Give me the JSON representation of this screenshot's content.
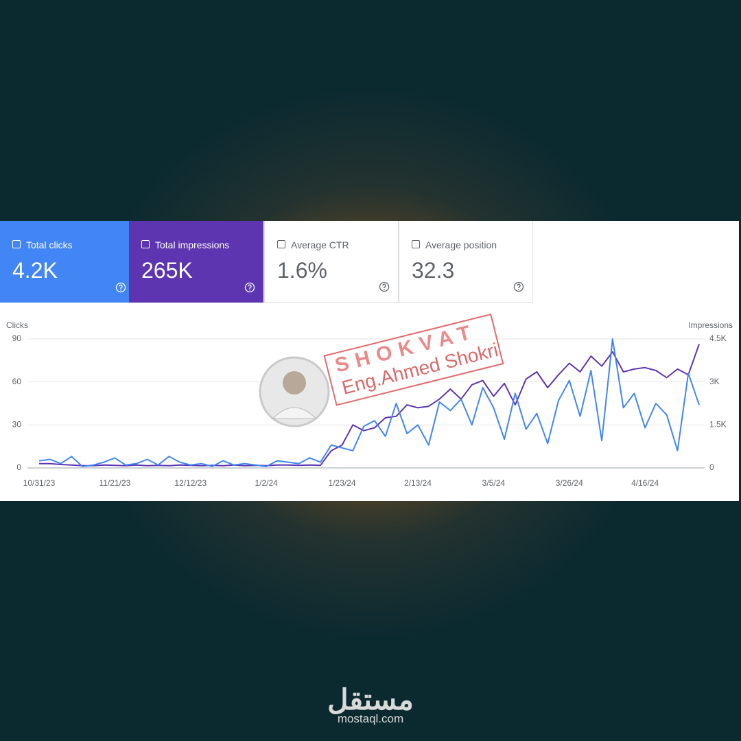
{
  "kpis": [
    {
      "label": "Total clicks",
      "value": "4.2K"
    },
    {
      "label": "Total impressions",
      "value": "265K"
    },
    {
      "label": "Average CTR",
      "value": "1.6%"
    },
    {
      "label": "Average position",
      "value": "32.3"
    }
  ],
  "chart_data": {
    "type": "line",
    "y_label": "Clicks",
    "y2_label": "Impressions",
    "categories": [
      "10/31/23",
      null,
      null,
      null,
      null,
      null,
      null,
      "11/21/23",
      null,
      null,
      null,
      null,
      null,
      null,
      "12/12/23",
      null,
      null,
      null,
      null,
      null,
      null,
      "1/2/24",
      null,
      null,
      null,
      null,
      null,
      null,
      "1/23/24",
      null,
      null,
      null,
      null,
      null,
      null,
      "2/13/24",
      null,
      null,
      null,
      null,
      null,
      null,
      "3/5/24",
      null,
      null,
      null,
      null,
      null,
      null,
      "3/26/24",
      null,
      null,
      null,
      null,
      null,
      null,
      "4/16/24",
      null,
      null,
      null,
      null,
      null
    ],
    "series": [
      {
        "name": "Clicks",
        "color": "#4285f4",
        "values": [
          5,
          6,
          3,
          8,
          1,
          2,
          4,
          7,
          2,
          3,
          6,
          2,
          8,
          4,
          2,
          3,
          1,
          5,
          2,
          3,
          2,
          1,
          5,
          4,
          3,
          7,
          4,
          16,
          14,
          12,
          29,
          33,
          22,
          45,
          24,
          30,
          16,
          46,
          40,
          48,
          30,
          56,
          42,
          20,
          52,
          27,
          38,
          17,
          47,
          61,
          36,
          68,
          19,
          90,
          42,
          52,
          28,
          45,
          37,
          12,
          66,
          44
        ]
      },
      {
        "name": "Impressions",
        "color": "#5e35b1",
        "axis": "y2",
        "values": [
          150,
          150,
          120,
          100,
          80,
          80,
          100,
          90,
          80,
          100,
          80,
          90,
          80,
          100,
          90,
          80,
          90,
          80,
          100,
          80,
          90,
          80,
          100,
          100,
          90,
          100,
          90,
          600,
          800,
          1500,
          1300,
          1400,
          1750,
          1800,
          2200,
          2100,
          2150,
          2400,
          2750,
          2400,
          2900,
          3050,
          2500,
          2950,
          2200,
          3100,
          3350,
          2800,
          3250,
          3650,
          3350,
          3900,
          3550,
          4050,
          3350,
          3450,
          3500,
          3400,
          3150,
          3450,
          3250,
          4320
        ]
      }
    ],
    "ylim": [
      0,
      90
    ],
    "yticks": [
      0,
      30,
      60,
      90
    ],
    "y2lim": [
      0,
      4500
    ],
    "y2ticks": [
      0,
      {
        "value": 1500,
        "label": "1.5K"
      },
      {
        "value": 3000,
        "label": "3K"
      },
      {
        "value": 4500,
        "label": "4.5K"
      }
    ],
    "grid": true
  },
  "watermark": {
    "brand": "SHOKVAT",
    "name": "Eng.Ahmed Shokri"
  },
  "footer": {
    "logo": "مستقل",
    "site": "mostaql.com"
  }
}
